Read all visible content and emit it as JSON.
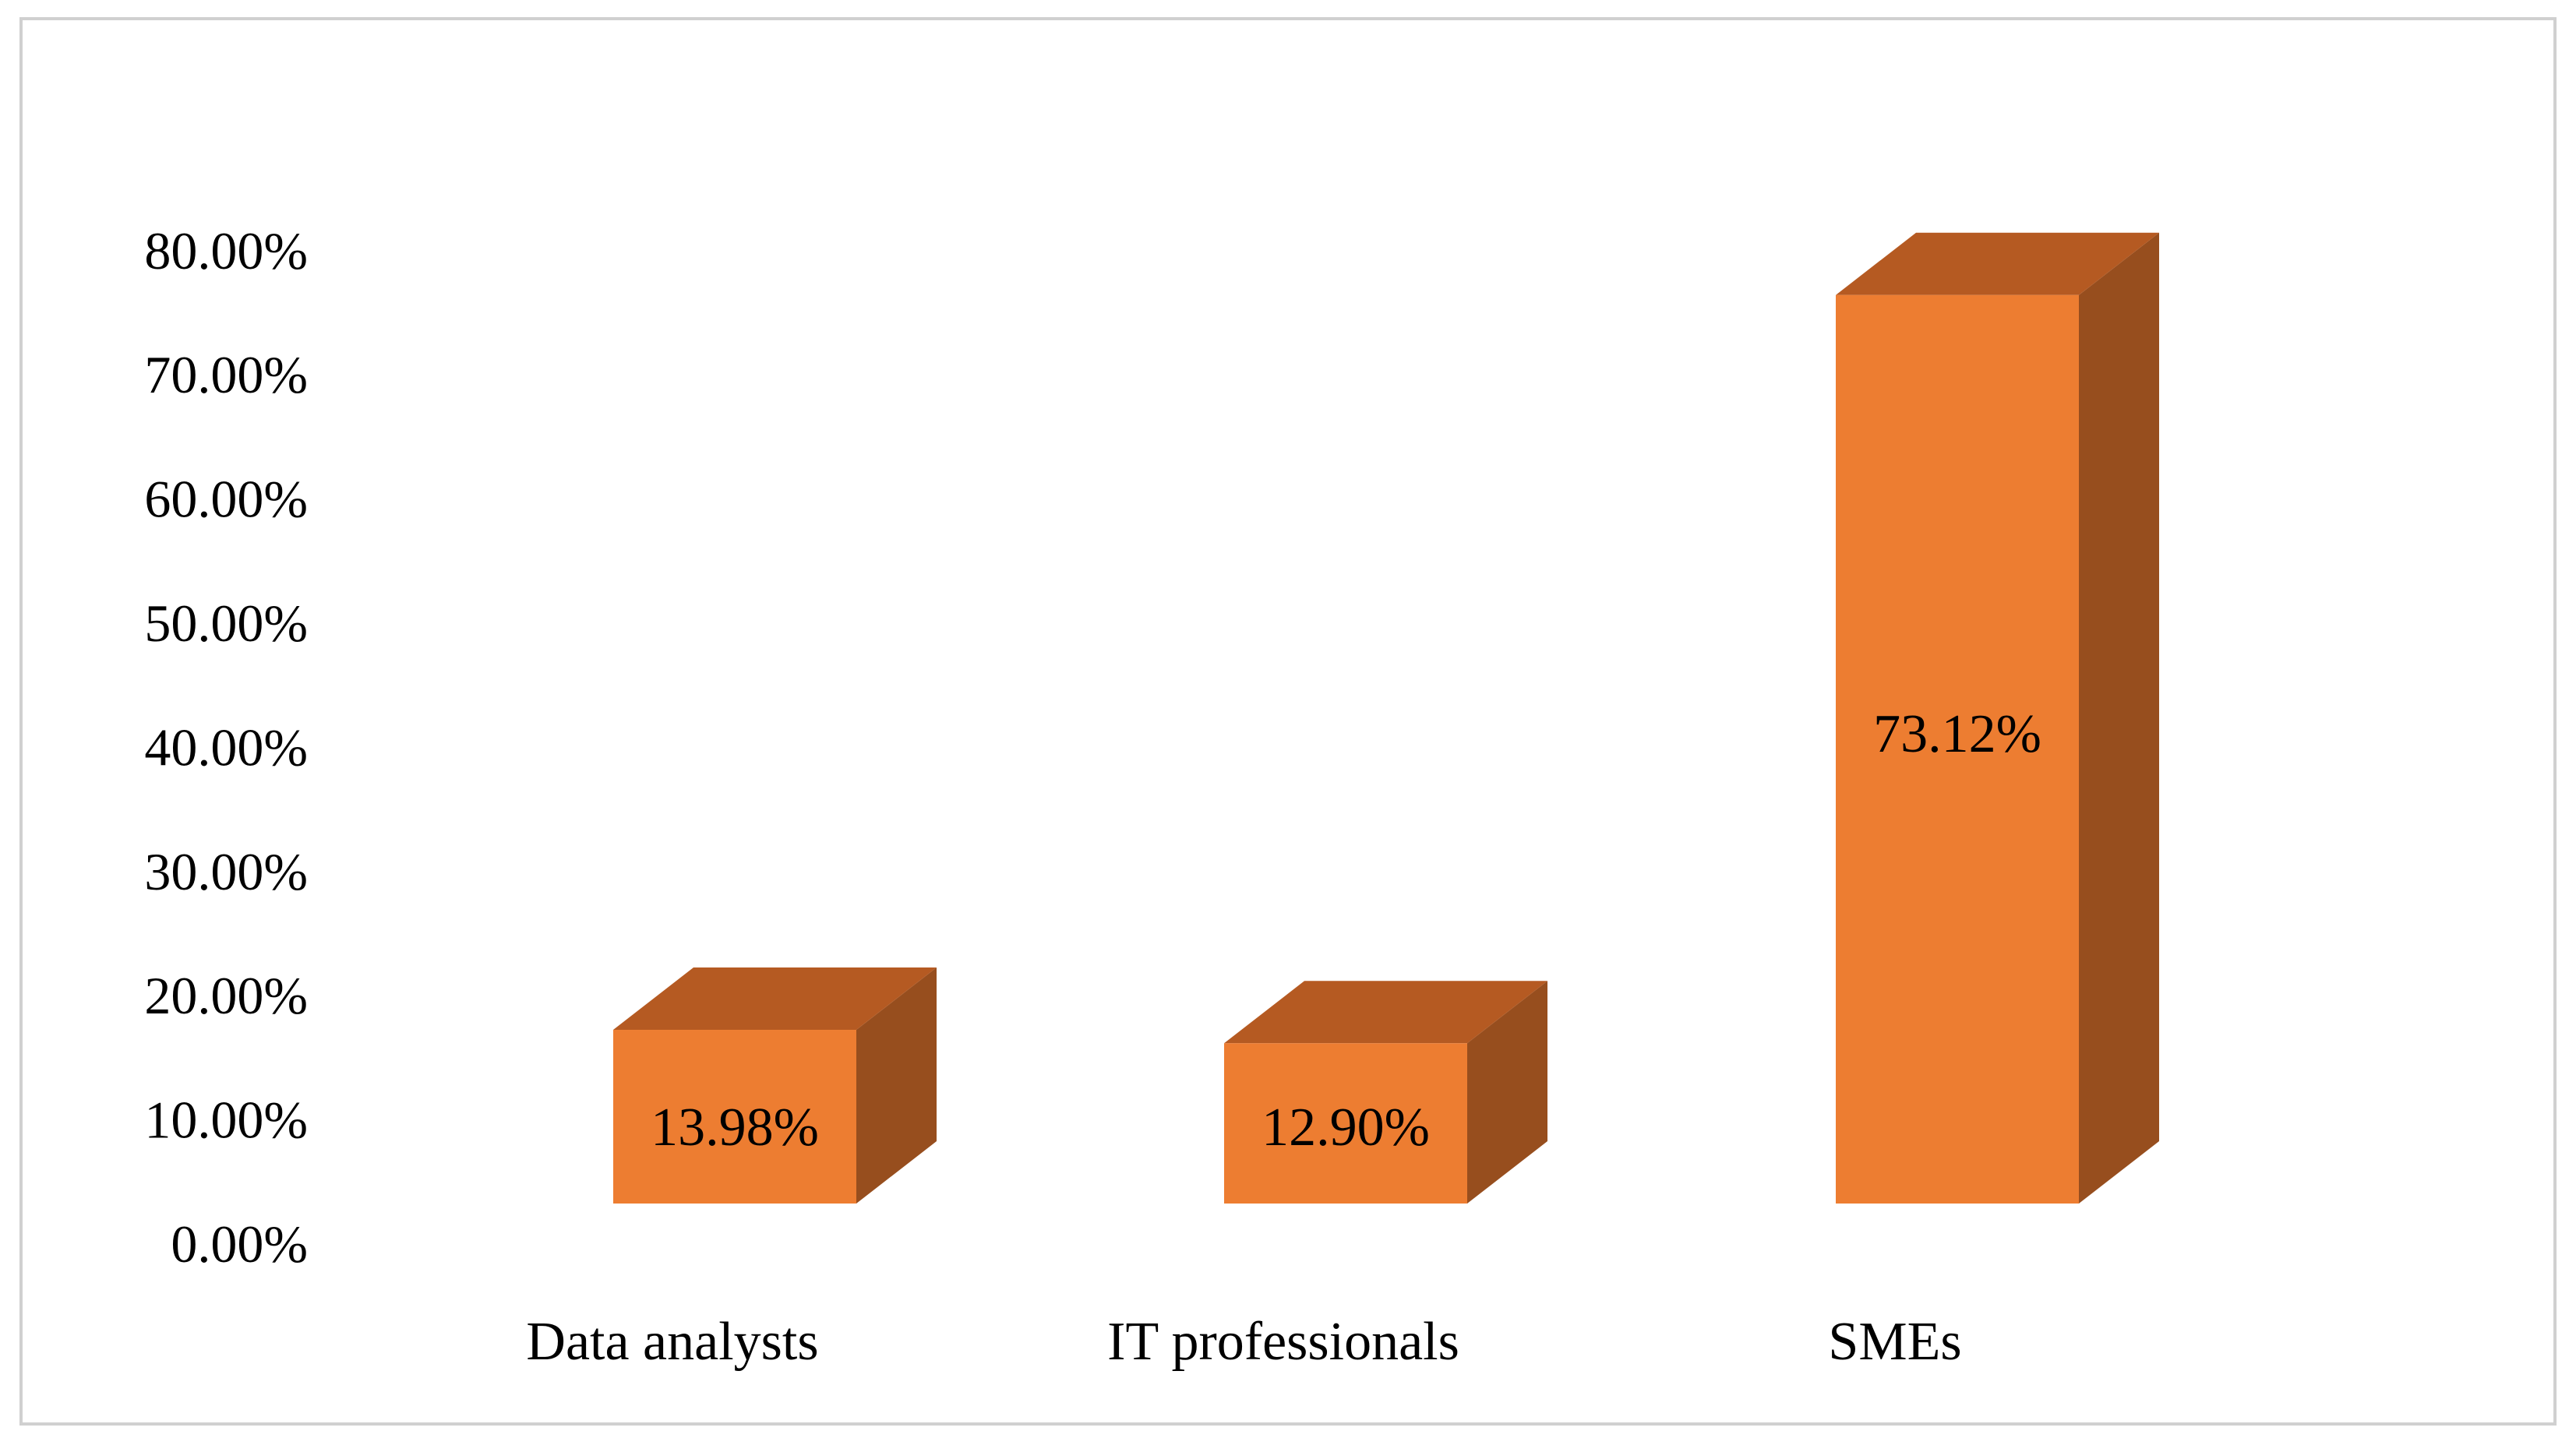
{
  "chart_data": {
    "type": "bar",
    "style": "3d-column",
    "categories": [
      "Data analysts",
      "IT professionals",
      "SMEs"
    ],
    "values": [
      13.98,
      12.9,
      73.12
    ],
    "value_labels": [
      "13.98%",
      "12.90%",
      "73.12%"
    ],
    "ylim": [
      0,
      80
    ],
    "yticks": [
      0,
      10,
      20,
      30,
      40,
      50,
      60,
      70,
      80
    ],
    "ytick_labels": [
      "0.00%",
      "10.00%",
      "20.00%",
      "30.00%",
      "40.00%",
      "50.00%",
      "60.00%",
      "70.00%",
      "80.00%"
    ],
    "title": "",
    "xlabel": "",
    "ylabel": "",
    "grid": false,
    "legend": "none",
    "colors": {
      "front": "#ED7D31",
      "top": "#B55A22",
      "side": "#974E1E"
    }
  }
}
